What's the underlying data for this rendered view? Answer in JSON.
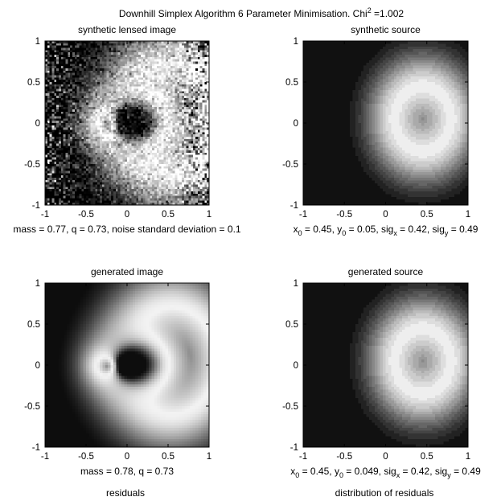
{
  "figure": {
    "title_main": "Downhill Simplex Algorithm 6 Parameter Minimisation. Chi",
    "title_sup": "2",
    "title_tail": " =1.002"
  },
  "panels": [
    {
      "id": "synthetic-lensed-image",
      "title": "synthetic lensed image",
      "caption": "mass = 0.77, q = 0.73, noise standard deviation = 0.1"
    },
    {
      "id": "synthetic-source",
      "title": "synthetic source",
      "caption_parts": [
        "x",
        "0",
        " = 0.45, y",
        "0",
        " = 0.05, sig",
        "x",
        " = 0.42, sig",
        "y",
        " = 0.49"
      ]
    },
    {
      "id": "generated-image",
      "title": "generated image",
      "caption": "mass = 0.78, q = 0.73"
    },
    {
      "id": "generated-source",
      "title": "generated source",
      "caption_parts": [
        "x",
        "0",
        " = 0.45, y",
        "0",
        " = 0.049, sig",
        "x",
        " = 0.42, sig",
        "y",
        " = 0.49"
      ]
    }
  ],
  "bottom_labels": {
    "left": "residuals",
    "right": "distribution of residuals"
  },
  "chart_data": [
    {
      "type": "heatmap",
      "title": "synthetic lensed image",
      "colormap": "gray",
      "xlim": [
        -1,
        1
      ],
      "ylim": [
        -1,
        1
      ],
      "xticks": [
        "-1",
        "-0.5",
        "0",
        "0.5",
        "1"
      ],
      "yticks": [
        "1",
        "0.5",
        "0",
        "-0.5",
        "-1"
      ],
      "model": {
        "kind": "lensed",
        "mass": 0.77,
        "q": 0.73,
        "noise_sd": 0.1,
        "x0": 0.45,
        "y0": 0.05,
        "sigx": 0.42,
        "sigy": 0.49
      }
    },
    {
      "type": "heatmap",
      "title": "synthetic source",
      "colormap": "gray",
      "xlim": [
        -1,
        1
      ],
      "ylim": [
        -1,
        1
      ],
      "xticks": [
        "-1",
        "-0.5",
        "0",
        "0.5",
        "1"
      ],
      "yticks": [
        "1",
        "0.5",
        "0",
        "-0.5",
        "-1"
      ],
      "model": {
        "kind": "source",
        "x0": 0.45,
        "y0": 0.05,
        "sigx": 0.42,
        "sigy": 0.49
      }
    },
    {
      "type": "heatmap",
      "title": "generated image",
      "colormap": "gray",
      "xlim": [
        -1,
        1
      ],
      "ylim": [
        -1,
        1
      ],
      "xticks": [
        "-1",
        "-0.5",
        "0",
        "0.5",
        "1"
      ],
      "yticks": [
        "1",
        "0.5",
        "0",
        "-0.5",
        "-1"
      ],
      "model": {
        "kind": "lensed",
        "mass": 0.78,
        "q": 0.73,
        "noise_sd": 0,
        "x0": 0.45,
        "y0": 0.049,
        "sigx": 0.42,
        "sigy": 0.49
      }
    },
    {
      "type": "heatmap",
      "title": "generated source",
      "colormap": "gray",
      "xlim": [
        -1,
        1
      ],
      "ylim": [
        -1,
        1
      ],
      "xticks": [
        "-1",
        "-0.5",
        "0",
        "0.5",
        "1"
      ],
      "yticks": [
        "1",
        "0.5",
        "0",
        "-0.5",
        "-1"
      ],
      "model": {
        "kind": "source",
        "x0": 0.45,
        "y0": 0.049,
        "sigx": 0.42,
        "sigy": 0.49
      }
    }
  ]
}
